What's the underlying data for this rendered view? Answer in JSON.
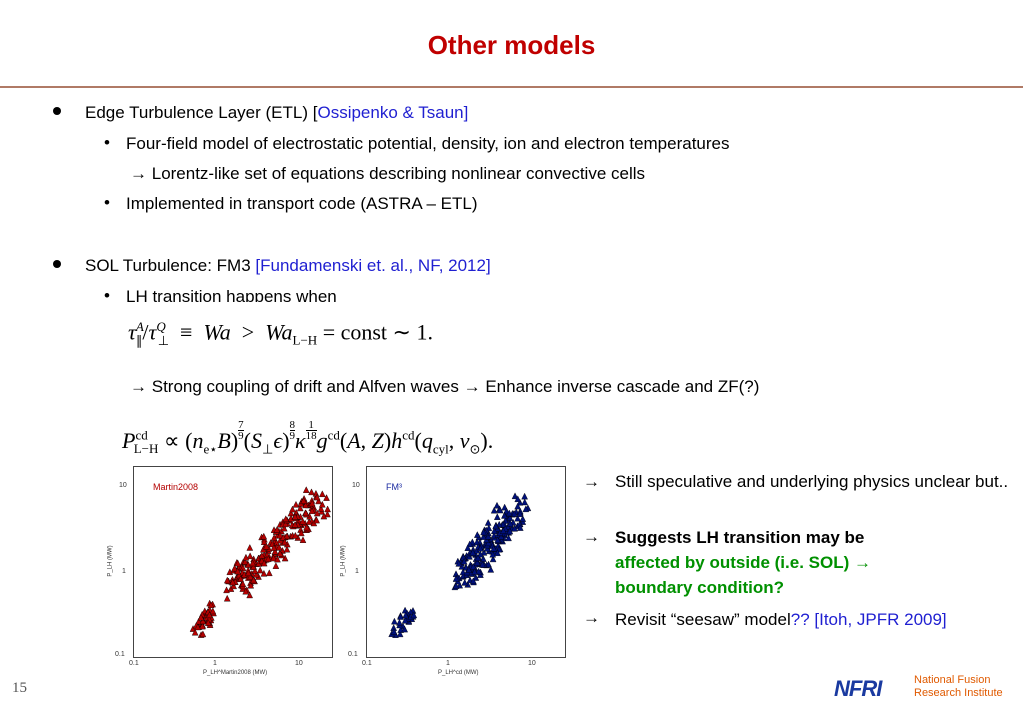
{
  "title": "Other models",
  "section1": {
    "heading": "Edge Turbulence Layer (ETL) [",
    "heading_ref": "Ossipenko & Tsaun]",
    "item1": "Four-field model of electrostatic potential, density, ion and electron temperatures",
    "item1_cont": "Lorentz-like set of equations describing nonlinear convective cells",
    "item2": "Implemented in transport code (ASTRA – ETL)"
  },
  "section2": {
    "heading": "SOL Turbulence: FM3 ",
    "heading_ref": "[Fundamenski et. al., NF, 2012]",
    "item1": "LH transition happens when",
    "coupling_a": "Strong coupling of drift and Alfven waves",
    "coupling_b": "Enhance inverse cascade and ZF(?)"
  },
  "arrow_glyph": "→",
  "plots": {
    "left_label": "Martin2008",
    "right_label": "FM³",
    "y_axis": "P_LH (MW)",
    "left_x_axis": "P_LH^Martin2008 (MW)",
    "right_x_axis": "P_LH^cd (MW)",
    "ticks": {
      "t01": "0.1",
      "t1": "1",
      "t10": "10"
    }
  },
  "notes": {
    "n1": "Still speculative and underlying physics unclear but..",
    "n2_bold": "Suggests LH transition may be",
    "n2_green": "affected by outside (i.e. SOL)",
    "n2_green2": "boundary condition?",
    "n3": "Revisit “seesaw” model",
    "n3_ref": "?? [Itoh, JPFR 2009]"
  },
  "page_number": "15",
  "logo": {
    "mark": "NFRI",
    "line1": "National Fusion",
    "line2": "Research Institute"
  },
  "colors": {
    "title": "#c00000",
    "link": "#1f1fd1",
    "green": "#009000",
    "red_pts": "#b40000",
    "blue_pts": "#00107a"
  }
}
